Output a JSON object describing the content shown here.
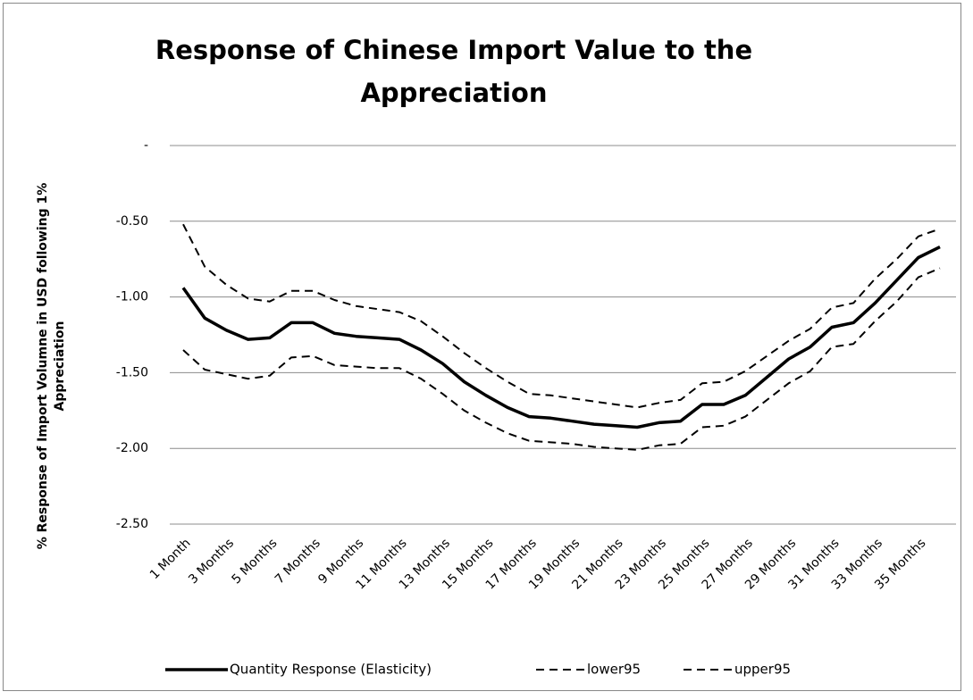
{
  "chart_data": {
    "type": "line",
    "title": [
      "Response of Chinese Import Value to the",
      "Appreciation"
    ],
    "y_label": [
      "% Response of Import Volumne in USD following 1%",
      "Appreciation"
    ],
    "categories": [
      "1 Month",
      null,
      "3 Months",
      null,
      "5 Months",
      null,
      "7 Months",
      null,
      "9 Months",
      null,
      "11 Months",
      null,
      "13 Months",
      null,
      "15 Months",
      null,
      "17 Months",
      null,
      "19 Months",
      null,
      "21 Months",
      null,
      "23 Months",
      null,
      "25 Months",
      null,
      "27 Months",
      null,
      "29 Months",
      null,
      "31 Months",
      null,
      "33 Months",
      null,
      "35 Months",
      null
    ],
    "ylim": [
      -2.5,
      0
    ],
    "yticks": [
      {
        "value": 0,
        "label": "-"
      },
      {
        "value": -0.5,
        "label": "-0.50"
      },
      {
        "value": -1,
        "label": "-1.00"
      },
      {
        "value": -1.5,
        "label": "-1.50"
      },
      {
        "value": -2,
        "label": "-2.00"
      },
      {
        "value": -2.5,
        "label": "-2.50"
      }
    ],
    "grid": true,
    "legend_position": "bottom",
    "series": [
      {
        "name": "Quantity Response (Elasticity)",
        "color": "#000000",
        "line_style": "solid",
        "values": [
          -0.94,
          -1.14,
          -1.22,
          -1.28,
          -1.27,
          -1.17,
          -1.17,
          -1.24,
          -1.26,
          -1.27,
          -1.28,
          -1.35,
          -1.44,
          -1.56,
          -1.65,
          -1.73,
          -1.79,
          -1.8,
          -1.82,
          -1.84,
          -1.85,
          -1.86,
          -1.83,
          -1.82,
          -1.71,
          -1.71,
          -1.65,
          -1.53,
          -1.41,
          -1.33,
          -1.2,
          -1.17,
          -1.04,
          -0.89,
          -0.74,
          -0.67
        ]
      },
      {
        "name": "lower95",
        "color": "#000000",
        "line_style": "dashed",
        "values": [
          -1.35,
          -1.48,
          -1.51,
          -1.54,
          -1.52,
          -1.4,
          -1.39,
          -1.45,
          -1.46,
          -1.47,
          -1.47,
          -1.54,
          -1.64,
          -1.75,
          -1.83,
          -1.9,
          -1.95,
          -1.96,
          -1.97,
          -1.99,
          -2.0,
          -2.01,
          -1.98,
          -1.97,
          -1.86,
          -1.85,
          -1.79,
          -1.68,
          -1.57,
          -1.49,
          -1.33,
          -1.31,
          -1.16,
          -1.03,
          -0.87,
          -0.81
        ]
      },
      {
        "name": "upper95",
        "color": "#000000",
        "line_style": "dashed",
        "values": [
          -0.52,
          -0.8,
          -0.92,
          -1.01,
          -1.03,
          -0.96,
          -0.96,
          -1.02,
          -1.06,
          -1.08,
          -1.1,
          -1.16,
          -1.26,
          -1.37,
          -1.47,
          -1.56,
          -1.64,
          -1.65,
          -1.67,
          -1.69,
          -1.71,
          -1.73,
          -1.7,
          -1.68,
          -1.57,
          -1.56,
          -1.49,
          -1.39,
          -1.29,
          -1.21,
          -1.07,
          -1.04,
          -0.88,
          -0.75,
          -0.6,
          -0.55
        ]
      }
    ]
  }
}
